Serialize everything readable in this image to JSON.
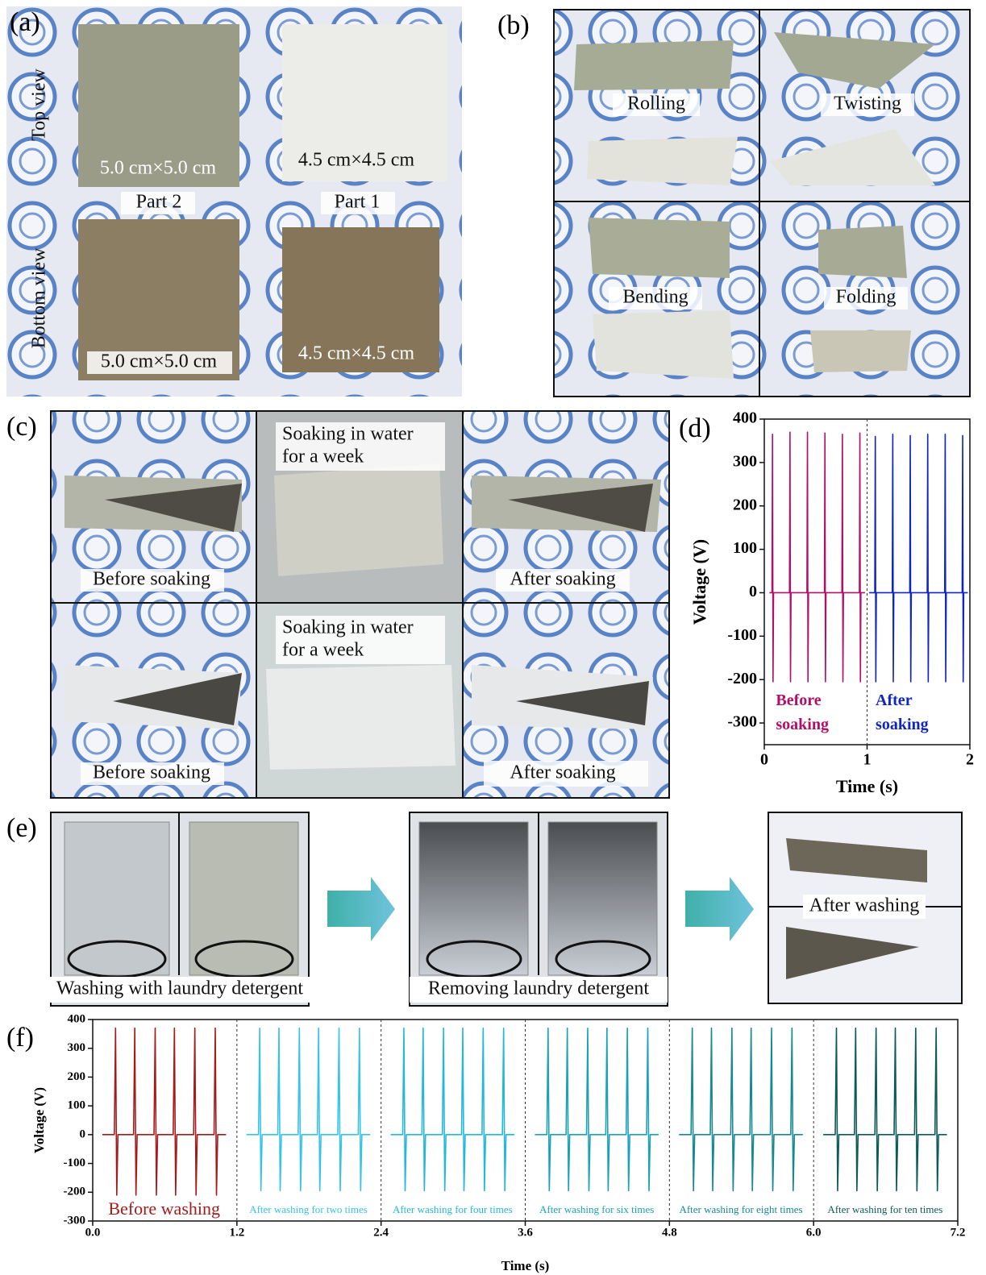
{
  "figure": {
    "a": {
      "label": "(a)",
      "top_view": "Top view",
      "bottom_view": "Bottom view",
      "part2": "Part 2",
      "part1": "Part 1",
      "sizes": [
        "5.0 cm×5.0 cm",
        "4.5 cm×4.5 cm",
        "5.0 cm×5.0 cm",
        "4.5 cm×4.5 cm"
      ]
    },
    "b": {
      "label": "(b)",
      "captions": [
        "Rolling",
        "Twisting",
        "Bending",
        "Folding"
      ]
    },
    "c": {
      "label": "(c)",
      "captions": [
        "Before soaking",
        "After soaking",
        "Before soaking",
        "After soaking"
      ],
      "soaking": [
        [
          "Soaking in water",
          "for a week"
        ],
        [
          "Soaking in water",
          "for a week"
        ]
      ]
    },
    "d": {
      "label": "(d)"
    },
    "e": {
      "label": "(e)",
      "captions": [
        "Washing with laundry detergent",
        "Removing laundry detergent",
        "After washing"
      ]
    },
    "f": {
      "label": "(f)"
    }
  },
  "chart_data": [
    {
      "type": "line",
      "x_label": "Time (s)",
      "y_label": "Voltage (V)",
      "xlim": [
        0,
        2
      ],
      "xticks": [
        0,
        1,
        2
      ],
      "ylim": [
        -350,
        400
      ],
      "yticks": [
        -300,
        -200,
        -100,
        0,
        100,
        200,
        300,
        400
      ],
      "dividers": [
        1
      ],
      "series": [
        {
          "name": "Before soaking",
          "color": "#b0106a",
          "x": [
            0.05,
            0.075,
            0.08,
            0.085,
            0.09,
            0.245,
            0.25,
            0.255,
            0.26,
            0.415,
            0.42,
            0.425,
            0.43,
            0.585,
            0.59,
            0.595,
            0.6,
            0.755,
            0.76,
            0.765,
            0.77,
            0.925,
            0.93,
            0.935,
            0.94,
            0.98
          ],
          "values": [
            0,
            0,
            365,
            -205,
            0,
            0,
            370,
            -205,
            0,
            0,
            370,
            -205,
            0,
            0,
            368,
            -205,
            0,
            0,
            365,
            -205,
            0,
            0,
            368,
            -205,
            0,
            0
          ]
        },
        {
          "name": "After soaking",
          "color": "#1024c0",
          "x": [
            1.02,
            1.075,
            1.08,
            1.085,
            1.09,
            1.245,
            1.25,
            1.255,
            1.26,
            1.415,
            1.42,
            1.425,
            1.43,
            1.585,
            1.59,
            1.595,
            1.6,
            1.755,
            1.76,
            1.765,
            1.77,
            1.925,
            1.93,
            1.935,
            1.94,
            1.98
          ],
          "values": [
            0,
            0,
            360,
            -205,
            0,
            0,
            365,
            -205,
            0,
            0,
            362,
            -205,
            0,
            0,
            365,
            -205,
            0,
            0,
            365,
            -205,
            0,
            0,
            362,
            -205,
            0,
            0
          ]
        }
      ]
    },
    {
      "type": "line",
      "x_label": "Time (s)",
      "y_label": "Voltage (V)",
      "xlim": [
        0,
        7.2
      ],
      "xticks": [
        {
          "value": 0,
          "label": "0.0"
        },
        1.2,
        2.4,
        3.6,
        4.8,
        {
          "value": 6,
          "label": "6.0"
        },
        7.2
      ],
      "ylim": [
        -300,
        400
      ],
      "yticks": [
        -300,
        -200,
        -100,
        0,
        100,
        200,
        300,
        400
      ],
      "dividers": [
        1.2,
        2.4,
        3.6,
        4.8,
        6
      ],
      "series": [
        {
          "name": "Before washing",
          "color": "#a51b1b",
          "x": [
            0.08,
            0.18,
            0.19,
            0.2,
            0.21,
            0.34,
            0.35,
            0.36,
            0.37,
            0.51,
            0.52,
            0.53,
            0.54,
            0.67,
            0.68,
            0.69,
            0.7,
            0.84,
            0.85,
            0.86,
            0.87,
            1.01,
            1.02,
            1.03,
            1.04,
            1.11
          ],
          "values": [
            0,
            0,
            370,
            -210,
            0,
            0,
            370,
            -210,
            0,
            0,
            370,
            -210,
            0,
            0,
            370,
            -210,
            0,
            0,
            370,
            -210,
            0,
            0,
            370,
            -210,
            0,
            0
          ]
        },
        {
          "name": "After washing for two times",
          "color": "#35c3e6",
          "x": [
            1.28,
            1.38,
            1.39,
            1.4,
            1.41,
            1.54,
            1.55,
            1.56,
            1.57,
            1.71,
            1.72,
            1.73,
            1.74,
            1.87,
            1.88,
            1.89,
            1.9,
            2.04,
            2.05,
            2.06,
            2.07,
            2.21,
            2.22,
            2.23,
            2.24,
            2.31
          ],
          "values": [
            0,
            0,
            370,
            -195,
            0,
            0,
            370,
            -195,
            0,
            0,
            370,
            -195,
            0,
            0,
            370,
            -195,
            0,
            0,
            370,
            -195,
            0,
            0,
            370,
            -195,
            0,
            0
          ]
        },
        {
          "name": "After washing for four times",
          "color": "#22b8d8",
          "x": [
            2.48,
            2.58,
            2.59,
            2.6,
            2.61,
            2.74,
            2.75,
            2.76,
            2.77,
            2.91,
            2.92,
            2.93,
            2.94,
            3.07,
            3.08,
            3.09,
            3.1,
            3.24,
            3.25,
            3.26,
            3.27,
            3.41,
            3.42,
            3.43,
            3.44,
            3.51
          ],
          "values": [
            0,
            0,
            370,
            -195,
            0,
            0,
            370,
            -195,
            0,
            0,
            370,
            -195,
            0,
            0,
            370,
            -195,
            0,
            0,
            370,
            -195,
            0,
            0,
            370,
            -195,
            0,
            0
          ]
        },
        {
          "name": "After washing for six times",
          "color": "#1ba2b5",
          "x": [
            3.68,
            3.78,
            3.79,
            3.8,
            3.81,
            3.94,
            3.95,
            3.96,
            3.97,
            4.11,
            4.12,
            4.13,
            4.14,
            4.27,
            4.28,
            4.29,
            4.3,
            4.44,
            4.45,
            4.46,
            4.47,
            4.61,
            4.62,
            4.63,
            4.64,
            4.71
          ],
          "values": [
            0,
            0,
            370,
            -195,
            0,
            0,
            370,
            -195,
            0,
            0,
            370,
            -195,
            0,
            0,
            370,
            -195,
            0,
            0,
            370,
            -195,
            0,
            0,
            370,
            -195,
            0,
            0
          ]
        },
        {
          "name": "After washing for eight times",
          "color": "#168a90",
          "x": [
            4.88,
            4.98,
            4.99,
            5.0,
            5.01,
            5.14,
            5.15,
            5.16,
            5.17,
            5.31,
            5.32,
            5.33,
            5.34,
            5.47,
            5.48,
            5.49,
            5.5,
            5.64,
            5.65,
            5.66,
            5.67,
            5.81,
            5.82,
            5.83,
            5.84,
            5.91
          ],
          "values": [
            0,
            0,
            370,
            -195,
            0,
            0,
            370,
            -195,
            0,
            0,
            370,
            -195,
            0,
            0,
            370,
            -195,
            0,
            0,
            370,
            -195,
            0,
            0,
            370,
            -195,
            0,
            0
          ]
        },
        {
          "name": "After washing for ten times",
          "color": "#0b5b58",
          "x": [
            6.08,
            6.18,
            6.19,
            6.2,
            6.21,
            6.34,
            6.35,
            6.36,
            6.37,
            6.51,
            6.52,
            6.53,
            6.54,
            6.67,
            6.68,
            6.69,
            6.7,
            6.84,
            6.85,
            6.86,
            6.87,
            7.01,
            7.02,
            7.03,
            7.04,
            7.11
          ],
          "values": [
            0,
            0,
            370,
            -195,
            0,
            0,
            370,
            -195,
            0,
            0,
            370,
            -195,
            0,
            0,
            370,
            -195,
            0,
            0,
            370,
            -195,
            0,
            0,
            370,
            -195,
            0,
            0
          ]
        }
      ]
    }
  ]
}
